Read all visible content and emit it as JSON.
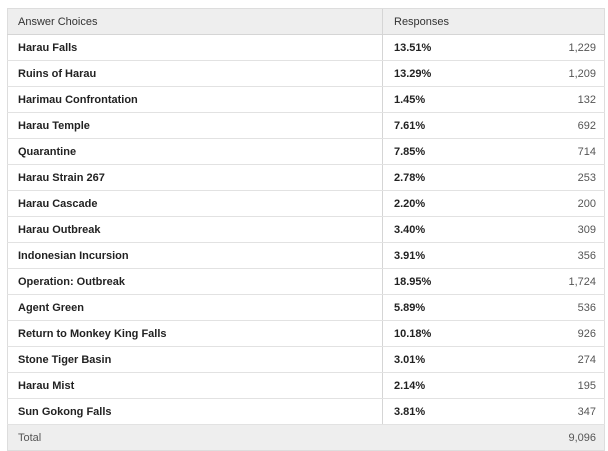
{
  "header": {
    "answer_choices": "Answer Choices",
    "responses": "Responses"
  },
  "rows": [
    {
      "choice": "Harau Falls",
      "percent": "13.51%",
      "count": "1,229"
    },
    {
      "choice": "Ruins of Harau",
      "percent": "13.29%",
      "count": "1,209"
    },
    {
      "choice": "Harimau Confrontation",
      "percent": "1.45%",
      "count": "132"
    },
    {
      "choice": "Harau Temple",
      "percent": "7.61%",
      "count": "692"
    },
    {
      "choice": "Quarantine",
      "percent": "7.85%",
      "count": "714"
    },
    {
      "choice": "Harau Strain 267",
      "percent": "2.78%",
      "count": "253"
    },
    {
      "choice": "Harau Cascade",
      "percent": "2.20%",
      "count": "200"
    },
    {
      "choice": "Harau Outbreak",
      "percent": "3.40%",
      "count": "309"
    },
    {
      "choice": "Indonesian Incursion",
      "percent": "3.91%",
      "count": "356"
    },
    {
      "choice": "Operation: Outbreak",
      "percent": "18.95%",
      "count": "1,724"
    },
    {
      "choice": "Agent Green",
      "percent": "5.89%",
      "count": "536"
    },
    {
      "choice": "Return to Monkey King Falls",
      "percent": "10.18%",
      "count": "926"
    },
    {
      "choice": "Stone Tiger Basin",
      "percent": "3.01%",
      "count": "274"
    },
    {
      "choice": "Harau Mist",
      "percent": "2.14%",
      "count": "195"
    },
    {
      "choice": "Sun Gokong Falls",
      "percent": "3.81%",
      "count": "347"
    }
  ],
  "footer": {
    "label": "Total",
    "value": "9,096"
  }
}
